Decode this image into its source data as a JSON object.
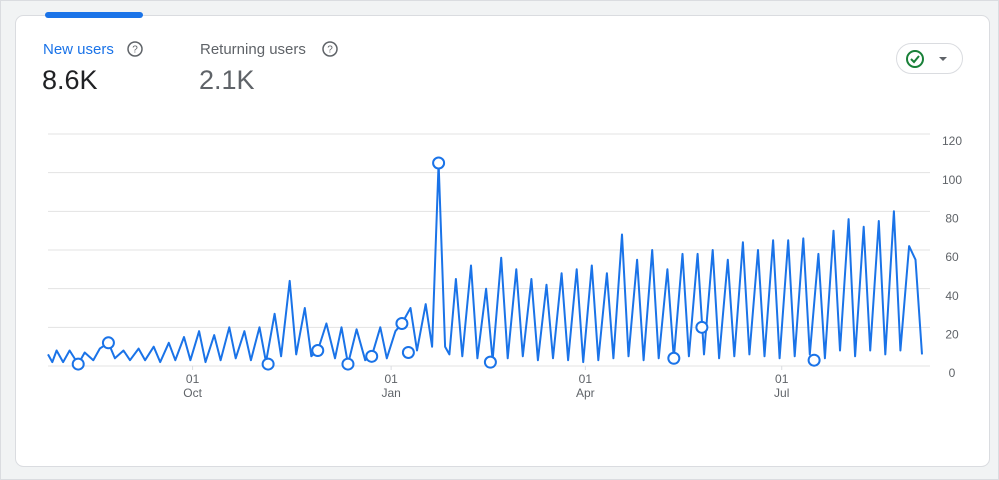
{
  "tabs": [
    {
      "label": "New users",
      "value": "8.6K"
    },
    {
      "label": "Returning users",
      "value": "2.1K"
    }
  ],
  "chart_data": {
    "type": "line",
    "x": [
      0,
      2,
      4,
      7,
      10,
      14,
      17,
      21,
      24,
      28,
      31,
      35,
      38,
      42,
      45,
      49,
      52,
      56,
      59,
      63,
      66,
      70,
      73,
      77,
      80,
      84,
      87,
      91,
      94,
      98,
      101,
      105,
      108,
      112,
      115,
      119,
      122,
      125,
      129,
      133,
      136,
      139,
      143,
      147,
      150,
      154,
      157,
      161,
      164,
      168,
      171,
      175,
      178,
      181,
      184,
      186,
      189,
      192,
      196,
      199,
      203,
      206,
      210,
      213,
      217,
      220,
      224,
      227,
      231,
      234,
      238,
      241,
      245,
      248,
      252,
      255,
      259,
      262,
      266,
      269,
      273,
      276,
      280,
      283,
      287,
      290,
      294,
      297,
      301,
      304,
      308,
      311,
      315,
      318,
      322,
      325,
      329,
      332,
      336,
      339,
      343,
      346,
      350,
      353,
      357,
      360,
      364,
      367,
      371,
      374,
      378,
      381,
      385,
      388,
      392,
      395,
      399,
      402,
      405
    ],
    "values": [
      6,
      2,
      8,
      2,
      8,
      1,
      7,
      3,
      9,
      12,
      4,
      8,
      3,
      9,
      3,
      10,
      2,
      12,
      3,
      15,
      3,
      18,
      2,
      16,
      3,
      20,
      4,
      18,
      3,
      20,
      2,
      27,
      5,
      44,
      6,
      30,
      5,
      8,
      22,
      4,
      20,
      1,
      19,
      3,
      5,
      20,
      4,
      18,
      22,
      30,
      8,
      32,
      10,
      105,
      10,
      6,
      45,
      5,
      52,
      4,
      40,
      3,
      56,
      4,
      50,
      5,
      45,
      3,
      42,
      4,
      48,
      3,
      50,
      2,
      52,
      3,
      48,
      4,
      68,
      5,
      55,
      3,
      60,
      4,
      50,
      4,
      58,
      5,
      58,
      6,
      60,
      4,
      55,
      5,
      64,
      6,
      60,
      5,
      65,
      4,
      65,
      5,
      66,
      6,
      58,
      4,
      70,
      8,
      76,
      5,
      72,
      8,
      75,
      6,
      80,
      8,
      62,
      55,
      6
    ],
    "color": "#1a73e8",
    "annotations": {
      "x": [
        14,
        28,
        102,
        125,
        139,
        150,
        164,
        167,
        181,
        205,
        290,
        303,
        355
      ],
      "values": [
        1,
        12,
        1,
        8,
        1,
        5,
        22,
        7,
        105,
        2,
        4,
        20,
        3
      ]
    },
    "xlim": [
      0,
      405
    ],
    "xticks": [
      {
        "value": 67,
        "label": "01 Oct"
      },
      {
        "value": 159,
        "label": "01 Jan"
      },
      {
        "value": 249,
        "label": "01 Apr"
      },
      {
        "value": 340,
        "label": "01 Jul"
      }
    ],
    "ylim": [
      0,
      120
    ],
    "yticks": [
      0,
      20,
      40,
      60,
      80,
      100,
      120
    ],
    "grid": true
  }
}
